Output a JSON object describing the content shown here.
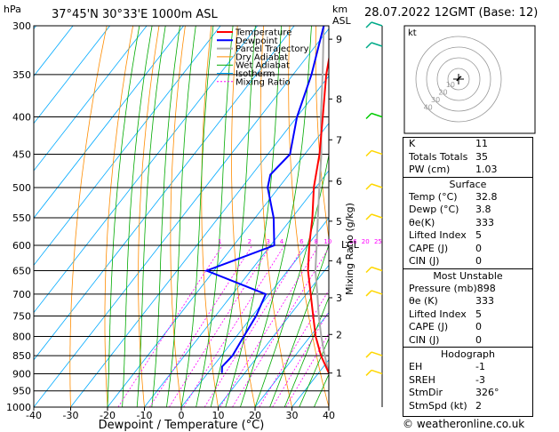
{
  "header": {
    "location": "37°45'N  30°33'E  1000m  ASL",
    "date": "28.07.2022  12GMT  (Base: 12)"
  },
  "footer": "© weatheronline.co.uk",
  "colors": {
    "temperature": "#ff0000",
    "dewpoint": "#0000ff",
    "parcel": "#aaaaaa",
    "dry_adiabat": "#ff8c00",
    "wet_adiabat": "#00aa00",
    "isotherm": "#00aaff",
    "mixing_ratio": "#ff00ff",
    "wind": "#ffd700"
  },
  "chart_data": {
    "type": "line",
    "title": "",
    "xlabel": "Dewpoint / Temperature (°C)",
    "ylabel": "hPa",
    "right_label_km": "km\nASL",
    "mixing_label": "Mixing Ratio (g/kg)",
    "xlim": [
      -40,
      40
    ],
    "ylim": [
      1000,
      300
    ],
    "x_ticks": [
      "-40",
      "-30",
      "-20",
      "-10",
      "0",
      "10",
      "20",
      "30",
      "40"
    ],
    "pressure_ticks": [
      "300",
      "350",
      "400",
      "450",
      "500",
      "550",
      "600",
      "650",
      "700",
      "750",
      "800",
      "850",
      "900",
      "950",
      "1000"
    ],
    "km_ticks": [
      {
        "label": "9",
        "p": 313
      },
      {
        "label": "8",
        "p": 378
      },
      {
        "label": "7",
        "p": 430
      },
      {
        "label": "6",
        "p": 490
      },
      {
        "label": "5",
        "p": 556
      },
      {
        "label": "4",
        "p": 630
      },
      {
        "label": "3",
        "p": 708
      },
      {
        "label": "2",
        "p": 795
      },
      {
        "label": "1",
        "p": 898
      }
    ],
    "lcl_label": "LCL",
    "mixing_ratio_labels": [
      "1",
      "2",
      "3",
      "4",
      "6",
      "8",
      "10",
      "16",
      "20",
      "25"
    ],
    "legend": [
      "Temperature",
      "Dewpoint",
      "Parcel Trajectory",
      "Dry Adiabat",
      "Wet Adiabat",
      "Isotherm",
      "Mixing Ratio"
    ],
    "series": [
      {
        "name": "Temperature",
        "points": [
          [
            898,
            32.8
          ],
          [
            850,
            27
          ],
          [
            800,
            21.5
          ],
          [
            750,
            16.5
          ],
          [
            700,
            11.2
          ],
          [
            650,
            5.5
          ],
          [
            600,
            0.5
          ],
          [
            550,
            -4.5
          ],
          [
            500,
            -10.5
          ],
          [
            450,
            -16
          ],
          [
            400,
            -23
          ],
          [
            350,
            -31
          ],
          [
            300,
            -39
          ]
        ]
      },
      {
        "name": "Dewpoint",
        "points": [
          [
            898,
            3.8
          ],
          [
            880,
            2.5
          ],
          [
            850,
            3
          ],
          [
            800,
            2
          ],
          [
            750,
            1
          ],
          [
            700,
            -1
          ],
          [
            650,
            -22
          ],
          [
            600,
            -9
          ],
          [
            550,
            -15
          ],
          [
            500,
            -23
          ],
          [
            480,
            -25
          ],
          [
            450,
            -24
          ],
          [
            400,
            -30
          ],
          [
            350,
            -35
          ],
          [
            300,
            -42
          ]
        ]
      },
      {
        "name": "Parcel Trajectory",
        "points": [
          [
            898,
            32.8
          ],
          [
            850,
            28
          ],
          [
            800,
            23
          ],
          [
            750,
            18
          ],
          [
            700,
            13
          ],
          [
            650,
            7.5
          ],
          [
            600,
            2.5
          ],
          [
            550,
            -3
          ],
          [
            500,
            -9
          ],
          [
            450,
            -15.5
          ],
          [
            400,
            -23.5
          ],
          [
            350,
            -32
          ],
          [
            300,
            -42
          ]
        ]
      }
    ],
    "mixing_ratio_values": [
      1,
      2,
      3,
      4,
      6,
      8,
      10,
      16,
      20,
      25
    ],
    "wind_barbs": [
      {
        "p": 900,
        "color": "#ffd700"
      },
      {
        "p": 850,
        "color": "#ffd700"
      },
      {
        "p": 700,
        "color": "#ffd700"
      },
      {
        "p": 650,
        "color": "#ffd700"
      },
      {
        "p": 550,
        "color": "#ffd700"
      },
      {
        "p": 500,
        "color": "#ffd700"
      },
      {
        "p": 450,
        "color": "#ffd700"
      },
      {
        "p": 400,
        "color": "#00cc00"
      },
      {
        "p": 320,
        "color": "#00aa88"
      },
      {
        "p": 300,
        "color": "#00aa88"
      }
    ]
  },
  "hodograph": {
    "unit_label": "kt",
    "ring_labels": [
      "10",
      "20",
      "30",
      "40"
    ]
  },
  "indices": [
    {
      "label": "K",
      "value": "11"
    },
    {
      "label": "Totals Totals",
      "value": "35"
    },
    {
      "label": "PW (cm)",
      "value": "1.03"
    }
  ],
  "surface": {
    "title": "Surface",
    "rows": [
      {
        "label": "Temp (°C)",
        "value": "32.8"
      },
      {
        "label": "Dewp (°C)",
        "value": "3.8"
      },
      {
        "label": "θe(K)",
        "value": "333"
      },
      {
        "label": "Lifted Index",
        "value": "5"
      },
      {
        "label": "CAPE (J)",
        "value": "0"
      },
      {
        "label": "CIN (J)",
        "value": "0"
      }
    ]
  },
  "most_unstable": {
    "title": "Most Unstable",
    "rows": [
      {
        "label": "Pressure (mb)",
        "value": "898"
      },
      {
        "label": "θe (K)",
        "value": "333"
      },
      {
        "label": "Lifted Index",
        "value": "5"
      },
      {
        "label": "CAPE (J)",
        "value": "0"
      },
      {
        "label": "CIN (J)",
        "value": "0"
      }
    ]
  },
  "hodograph_table": {
    "title": "Hodograph",
    "rows": [
      {
        "label": "EH",
        "value": "-1"
      },
      {
        "label": "SREH",
        "value": "-3"
      },
      {
        "label": "StmDir",
        "value": "326°"
      },
      {
        "label": "StmSpd (kt)",
        "value": "2"
      }
    ]
  }
}
